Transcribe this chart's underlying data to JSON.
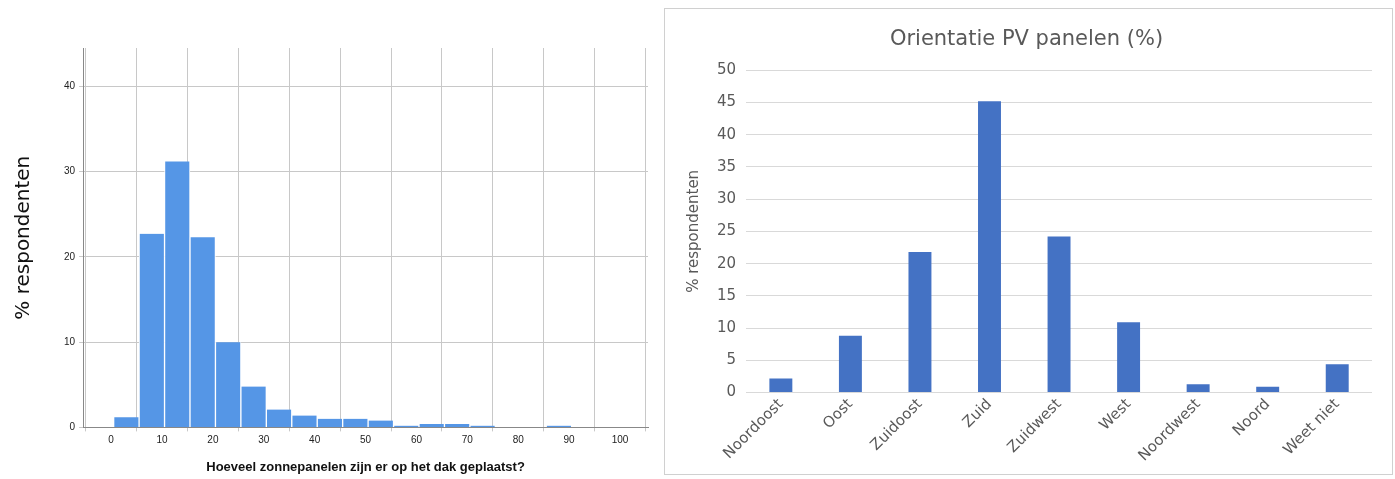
{
  "chart_data": [
    {
      "type": "histogram",
      "xlabel": "Hoeveel zonnepanelen zijn er op het dak geplaatst?",
      "ylabel": "% respondenten",
      "color": "#5596e6",
      "bins": [
        0.5,
        5.5,
        10.5,
        15.5,
        20.5,
        25.5,
        30.5,
        35.5,
        40.5,
        45.5,
        50.5,
        55.5,
        60.5,
        65.5,
        70.5,
        75.5,
        80.5,
        85.5,
        90.5
      ],
      "values": [
        1.2,
        22.7,
        31.2,
        22.3,
        10.0,
        4.8,
        2.1,
        1.4,
        1.0,
        1.0,
        0.8,
        0.2,
        0.4,
        0.4,
        0.2,
        0,
        0,
        0.2
      ],
      "xlim": [
        -5.5,
        105.5
      ],
      "xticks": [
        0,
        10,
        20,
        30,
        40,
        50,
        60,
        70,
        80,
        90,
        100
      ],
      "ylim": [
        0,
        44.5
      ],
      "yticks": [
        0,
        10,
        20,
        30,
        40
      ],
      "grid": true
    },
    {
      "type": "bar",
      "title": "Orientatie PV panelen (%)",
      "ylabel": "% respondenten",
      "color": "#4472c4",
      "categories": [
        "Noordoost",
        "Oost",
        "Zuidoost",
        "Zuid",
        "Zuidwest",
        "West",
        "Noordwest",
        "Noord",
        "Weet niet"
      ],
      "values": [
        2.2,
        8.8,
        21.8,
        45.2,
        24.2,
        10.9,
        1.3,
        0.9,
        4.4
      ],
      "ylim": [
        0,
        50
      ],
      "yticks": [
        0,
        5,
        10,
        15,
        20,
        25,
        30,
        35,
        40,
        45,
        50
      ],
      "grid": "y"
    }
  ]
}
